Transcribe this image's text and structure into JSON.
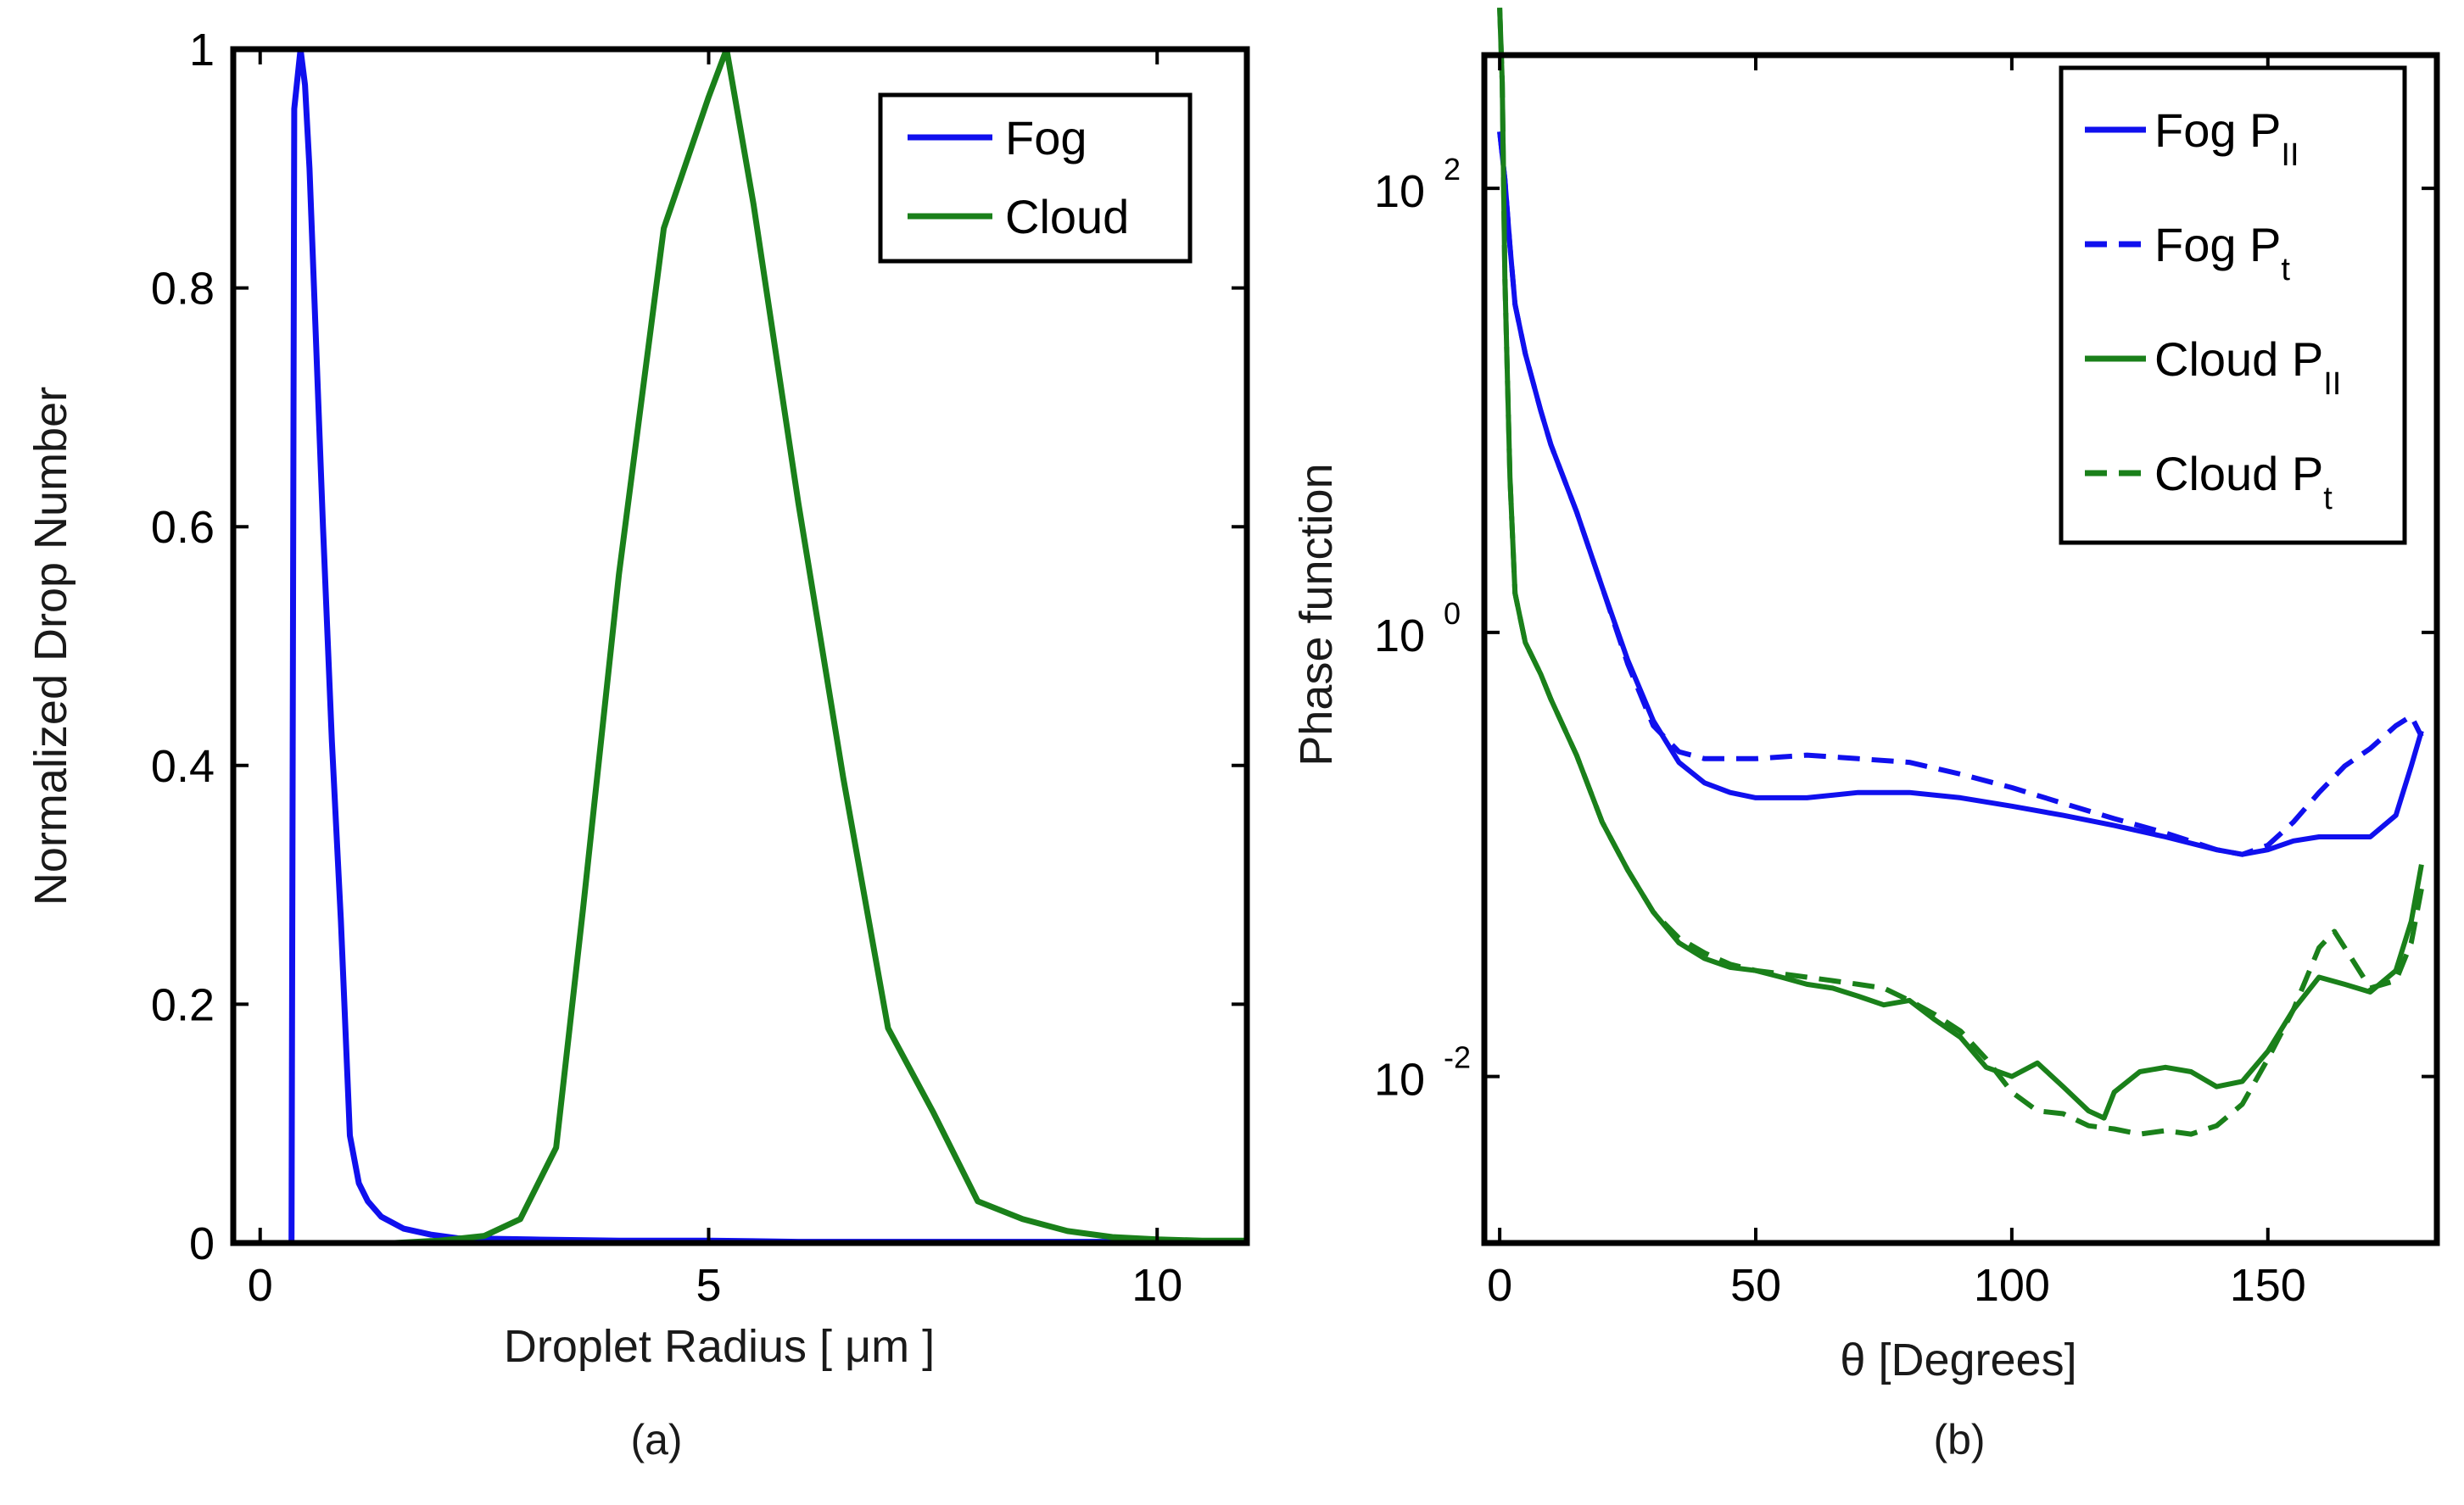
{
  "chart_data": [
    {
      "type": "line",
      "caption": "(a)",
      "xlabel": "Droplet Radius [ μm ]",
      "ylabel": "Normalized Drop Number",
      "xlim": [
        -0.3,
        11
      ],
      "ylim": [
        0,
        1
      ],
      "xticks": [
        "0",
        "5",
        "10"
      ],
      "yticks": [
        "0",
        "0.2",
        "0.4",
        "0.6",
        "0.8",
        "1"
      ],
      "legend_position": "top-right",
      "series": [
        {
          "name": "Fog",
          "color": "#1010ee",
          "dash": "solid",
          "x": [
            0.35,
            0.38,
            0.45,
            0.5,
            0.55,
            0.6,
            0.7,
            0.8,
            0.9,
            1.0,
            1.1,
            1.2,
            1.35,
            1.6,
            1.9,
            2.2,
            3,
            4,
            5,
            6,
            7,
            8,
            9,
            10,
            11
          ],
          "y": [
            0.0,
            0.95,
            1.0,
            0.97,
            0.9,
            0.8,
            0.6,
            0.42,
            0.27,
            0.09,
            0.05,
            0.035,
            0.022,
            0.012,
            0.007,
            0.004,
            0.003,
            0.002,
            0.002,
            0.001,
            0.001,
            0.001,
            0.001,
            0.001,
            0.001
          ]
        },
        {
          "name": "Cloud",
          "color": "#1a801a",
          "dash": "solid",
          "x": [
            1.0,
            1.5,
            2.0,
            2.5,
            2.9,
            3.3,
            3.6,
            4.0,
            4.5,
            5.0,
            5.2,
            5.5,
            6.0,
            6.5,
            7.0,
            7.5,
            8.0,
            8.5,
            9.0,
            9.5,
            10.0,
            10.5,
            11.0
          ],
          "y": [
            0.0,
            0.0,
            0.002,
            0.006,
            0.02,
            0.08,
            0.28,
            0.56,
            0.85,
            0.96,
            1.0,
            0.87,
            0.62,
            0.39,
            0.18,
            0.11,
            0.035,
            0.02,
            0.01,
            0.005,
            0.003,
            0.002,
            0.002
          ]
        }
      ]
    },
    {
      "type": "line",
      "caption": "(b)",
      "xlabel": "θ [Degrees]",
      "ylabel": "Phase function",
      "yscale": "log",
      "xlim": [
        -3,
        183
      ],
      "ylim_log10": [
        -2.75,
        2.6
      ],
      "xticks": [
        "0",
        "50",
        "100",
        "150"
      ],
      "yticks": [
        {
          "base": "10",
          "exp": "2",
          "value": 100
        },
        {
          "base": "10",
          "exp": "0",
          "value": 1
        },
        {
          "base": "10",
          "exp": "-2",
          "value": 0.01
        }
      ],
      "legend_position": "top-right",
      "series": [
        {
          "name": "Fog P",
          "subscript": "II",
          "color": "#1010ee",
          "dash": "solid",
          "x": [
            0,
            1,
            2,
            3,
            5,
            8,
            10,
            15,
            20,
            25,
            30,
            35,
            40,
            45,
            50,
            60,
            70,
            80,
            90,
            100,
            110,
            120,
            130,
            140,
            145,
            150,
            155,
            160,
            165,
            170,
            175,
            178,
            180
          ],
          "y": [
            180,
            110,
            55,
            30,
            18,
            10,
            7,
            3.5,
            1.6,
            0.75,
            0.4,
            0.26,
            0.21,
            0.19,
            0.18,
            0.18,
            0.19,
            0.19,
            0.18,
            0.165,
            0.15,
            0.135,
            0.12,
            0.105,
            0.1,
            0.105,
            0.115,
            0.12,
            0.12,
            0.12,
            0.15,
            0.25,
            0.36
          ]
        },
        {
          "name": "Fog P",
          "subscript": "t",
          "color": "#1010ee",
          "dash": "dashed",
          "x": [
            0,
            1,
            2,
            3,
            5,
            8,
            10,
            15,
            20,
            25,
            30,
            35,
            40,
            45,
            50,
            60,
            70,
            80,
            90,
            100,
            110,
            120,
            130,
            140,
            145,
            150,
            155,
            160,
            165,
            170,
            175,
            178,
            180
          ],
          "y": [
            180,
            110,
            55,
            30,
            18,
            10,
            7,
            3.5,
            1.6,
            0.72,
            0.38,
            0.29,
            0.27,
            0.27,
            0.27,
            0.28,
            0.27,
            0.26,
            0.23,
            0.2,
            0.17,
            0.145,
            0.125,
            0.105,
            0.1,
            0.11,
            0.14,
            0.19,
            0.25,
            0.3,
            0.38,
            0.42,
            0.34
          ]
        },
        {
          "name": "Cloud P",
          "subscript": "II",
          "color": "#1a801a",
          "dash": "solid",
          "x": [
            0,
            0.5,
            1,
            2,
            3,
            5,
            8,
            10,
            15,
            20,
            25,
            30,
            35,
            40,
            45,
            50,
            55,
            60,
            65,
            70,
            75,
            80,
            85,
            90,
            95,
            100,
            105,
            110,
            115,
            118,
            120,
            125,
            130,
            135,
            140,
            145,
            150,
            155,
            160,
            165,
            170,
            175,
            178,
            180
          ],
          "y": [
            650,
            300,
            40,
            5,
            1.5,
            0.9,
            0.65,
            0.5,
            0.28,
            0.14,
            0.085,
            0.055,
            0.04,
            0.034,
            0.031,
            0.03,
            0.028,
            0.026,
            0.025,
            0.023,
            0.021,
            0.022,
            0.018,
            0.015,
            0.011,
            0.01,
            0.0115,
            0.009,
            0.007,
            0.0065,
            0.0085,
            0.0105,
            0.011,
            0.0105,
            0.009,
            0.0095,
            0.013,
            0.02,
            0.028,
            0.026,
            0.024,
            0.03,
            0.05,
            0.09
          ]
        },
        {
          "name": "Cloud P",
          "subscript": "t",
          "color": "#1a801a",
          "dash": "dashed",
          "x": [
            0,
            0.5,
            1,
            2,
            3,
            5,
            8,
            10,
            15,
            20,
            25,
            30,
            35,
            40,
            45,
            50,
            55,
            60,
            65,
            70,
            75,
            80,
            85,
            90,
            95,
            100,
            105,
            110,
            115,
            120,
            125,
            130,
            135,
            140,
            145,
            150,
            155,
            160,
            163,
            166,
            170,
            175,
            178,
            180
          ],
          "y": [
            650,
            300,
            40,
            5,
            1.5,
            0.9,
            0.65,
            0.5,
            0.28,
            0.14,
            0.085,
            0.055,
            0.042,
            0.036,
            0.032,
            0.03,
            0.029,
            0.028,
            0.027,
            0.026,
            0.025,
            0.022,
            0.019,
            0.016,
            0.012,
            0.0085,
            0.007,
            0.0068,
            0.006,
            0.0058,
            0.0055,
            0.0057,
            0.0055,
            0.006,
            0.0075,
            0.012,
            0.02,
            0.038,
            0.045,
            0.035,
            0.025,
            0.027,
            0.04,
            0.07
          ]
        }
      ]
    }
  ]
}
